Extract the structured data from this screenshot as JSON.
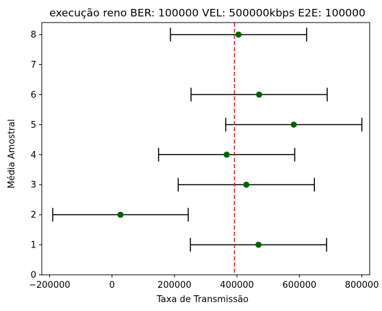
{
  "chart_data": {
    "type": "scatter",
    "title": "execução reno BER: 100000 VEL: 500000kbps E2E: 100000",
    "xlabel": "Taxa de Transmissão",
    "ylabel": "Média Amostral",
    "xlim": [
      -225000,
      825000
    ],
    "ylim": [
      0,
      8.4
    ],
    "x_ticks": [
      -200000,
      0,
      200000,
      400000,
      600000,
      800000
    ],
    "x_tick_labels": [
      "−200000",
      "0",
      "200000",
      "400000",
      "600000",
      "800000"
    ],
    "y_ticks": [
      0,
      1,
      2,
      3,
      4,
      5,
      6,
      7,
      8
    ],
    "y_tick_labels": [
      "0",
      "1",
      "2",
      "3",
      "4",
      "5",
      "6",
      "7",
      "8"
    ],
    "grid": false,
    "reference_line": {
      "x": 392000,
      "color": "#d62728",
      "style": "dashed"
    },
    "series": [
      {
        "marker_color": "#006400",
        "errorbar_color": "#000000",
        "points": [
          {
            "y": 1,
            "x": 469000,
            "xerr": 218000
          },
          {
            "y": 2,
            "x": 27000,
            "xerr": 217000
          },
          {
            "y": 3,
            "x": 430000,
            "xerr": 218000
          },
          {
            "y": 4,
            "x": 367000,
            "xerr": 218000
          },
          {
            "y": 5,
            "x": 582000,
            "xerr": 218000
          },
          {
            "y": 6,
            "x": 471000,
            "xerr": 218000
          },
          {
            "y": 8,
            "x": 405000,
            "xerr": 218000
          }
        ]
      }
    ]
  }
}
